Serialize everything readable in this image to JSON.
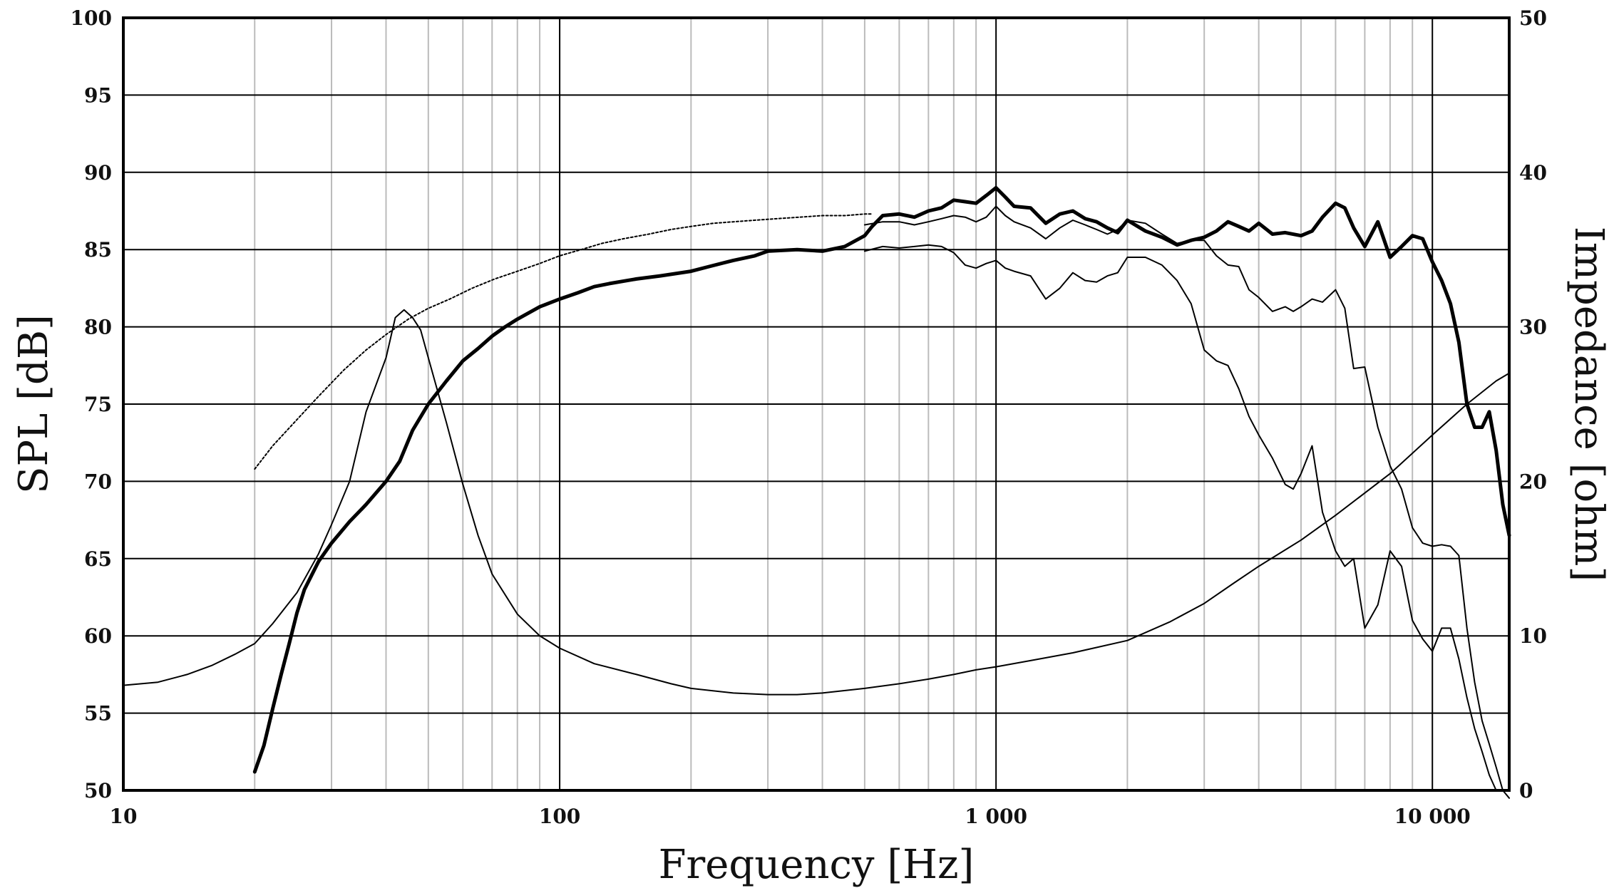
{
  "chart_data": {
    "type": "line",
    "title": "",
    "xlabel": "Frequency [Hz]",
    "ylabel": "SPL [dB]",
    "y2label": "Impedance [ohm]",
    "xscale": "log",
    "xlim": [
      10,
      15000
    ],
    "ylim": [
      50,
      100
    ],
    "y2lim": [
      0,
      50
    ],
    "grid": true,
    "legend": "none",
    "x_ticks": [
      {
        "value": 10,
        "label": "10"
      },
      {
        "value": 100,
        "label": "100"
      },
      {
        "value": 1000,
        "label": "1 000"
      },
      {
        "value": 10000,
        "label": "10 000"
      }
    ],
    "y_ticks": [
      {
        "value": 50,
        "label": "50"
      },
      {
        "value": 55,
        "label": "55"
      },
      {
        "value": 60,
        "label": "60"
      },
      {
        "value": 65,
        "label": "65"
      },
      {
        "value": 70,
        "label": "70"
      },
      {
        "value": 75,
        "label": "75"
      },
      {
        "value": 80,
        "label": "80"
      },
      {
        "value": 85,
        "label": "85"
      },
      {
        "value": 90,
        "label": "90"
      },
      {
        "value": 95,
        "label": "95"
      },
      {
        "value": 100,
        "label": "100"
      }
    ],
    "y2_ticks": [
      {
        "value": 0,
        "label": "0"
      },
      {
        "value": 10,
        "label": "10"
      },
      {
        "value": 20,
        "label": "20"
      },
      {
        "value": 30,
        "label": "30"
      },
      {
        "value": 40,
        "label": "40"
      },
      {
        "value": 50,
        "label": "50"
      }
    ],
    "series": [
      {
        "style": "thick",
        "axis": "left",
        "x": [
          20,
          21,
          22,
          23,
          24,
          25,
          26,
          28,
          30,
          33,
          36,
          40,
          43,
          46,
          50,
          55,
          60,
          65,
          70,
          75,
          80,
          90,
          100,
          110,
          120,
          130,
          150,
          170,
          200,
          220,
          250,
          280,
          300,
          350,
          400,
          450,
          500,
          520,
          550,
          600,
          650,
          700,
          750,
          800,
          850,
          900,
          950,
          1000,
          1050,
          1100,
          1200,
          1300,
          1400,
          1500,
          1600,
          1700,
          1800,
          1900,
          2000,
          2200,
          2400,
          2600,
          2800,
          3000,
          3200,
          3400,
          3600,
          3800,
          4000,
          4300,
          4600,
          5000,
          5300,
          5600,
          6000,
          6300,
          6600,
          7000,
          7500,
          8000,
          8500,
          9000,
          9500,
          10000,
          10500,
          11000,
          11500,
          12000,
          12500,
          13000,
          13500,
          14000,
          14500,
          15000
        ],
        "y": [
          51.2,
          52.9,
          55.3,
          57.5,
          59.5,
          61.5,
          63.0,
          64.8,
          66.0,
          67.4,
          68.5,
          70.0,
          71.3,
          73.3,
          75.0,
          76.5,
          77.8,
          78.6,
          79.4,
          80.0,
          80.5,
          81.3,
          81.8,
          82.2,
          82.6,
          82.8,
          83.1,
          83.3,
          83.6,
          83.9,
          84.3,
          84.6,
          84.9,
          85.0,
          84.9,
          85.2,
          85.9,
          86.5,
          87.2,
          87.3,
          87.1,
          87.5,
          87.7,
          88.2,
          88.1,
          88.0,
          88.5,
          89.0,
          88.4,
          87.8,
          87.7,
          86.7,
          87.3,
          87.5,
          87.0,
          86.8,
          86.4,
          86.1,
          86.9,
          86.2,
          85.8,
          85.3,
          85.6,
          85.8,
          86.2,
          86.8,
          86.5,
          86.2,
          86.7,
          86.0,
          86.1,
          85.9,
          86.2,
          87.1,
          88.0,
          87.7,
          86.4,
          85.2,
          86.8,
          84.5,
          85.2,
          85.9,
          85.7,
          84.2,
          83.0,
          81.5,
          79.0,
          75.0,
          73.5,
          73.5,
          74.5,
          72.0,
          68.5,
          66.5
        ]
      },
      {
        "style": "thin",
        "axis": "left",
        "x": [
          500,
          550,
          600,
          650,
          700,
          750,
          800,
          850,
          900,
          950,
          1000,
          1050,
          1100,
          1200,
          1300,
          1400,
          1500,
          1600,
          1700,
          1800,
          1900,
          2000,
          2200,
          2400,
          2600,
          2800,
          3000,
          3200,
          3400,
          3600,
          3800,
          4000,
          4300,
          4600,
          4800,
          5000,
          5300,
          5600,
          6000,
          6300,
          6600,
          7000,
          7500,
          8000,
          8500,
          9000,
          9500,
          10000,
          10500,
          11000,
          11500,
          12000,
          12500,
          13000,
          13500,
          14000,
          14500,
          15000
        ],
        "y": [
          86.6,
          86.8,
          86.8,
          86.6,
          86.8,
          87.0,
          87.2,
          87.1,
          86.8,
          87.1,
          87.8,
          87.2,
          86.8,
          86.4,
          85.7,
          86.4,
          86.9,
          86.6,
          86.3,
          86.0,
          86.3,
          86.9,
          86.7,
          86.0,
          85.4,
          85.6,
          85.6,
          84.6,
          84.0,
          83.9,
          82.4,
          81.9,
          81.0,
          81.3,
          81.0,
          81.3,
          81.8,
          81.6,
          82.4,
          81.2,
          77.3,
          77.4,
          73.5,
          71.0,
          69.5,
          67.0,
          66.0,
          65.8,
          65.9,
          65.8,
          65.2,
          60.5,
          57.0,
          54.5,
          53.0,
          51.5,
          50.0,
          49.5
        ]
      },
      {
        "style": "thin",
        "axis": "left",
        "x": [
          500,
          550,
          600,
          650,
          700,
          750,
          800,
          850,
          900,
          950,
          1000,
          1050,
          1100,
          1200,
          1300,
          1400,
          1500,
          1600,
          1700,
          1800,
          1900,
          2000,
          2200,
          2400,
          2600,
          2800,
          3000,
          3200,
          3400,
          3600,
          3800,
          4000,
          4300,
          4600,
          4800,
          5000,
          5300,
          5600,
          6000,
          6300,
          6600,
          7000,
          7500,
          8000,
          8500,
          9000,
          9500,
          10000,
          10500,
          11000,
          11500,
          12000,
          12500,
          13000,
          13500,
          14000,
          14500,
          15000
        ],
        "y": [
          84.9,
          85.2,
          85.1,
          85.2,
          85.3,
          85.2,
          84.8,
          84.0,
          83.8,
          84.1,
          84.3,
          83.8,
          83.6,
          83.3,
          81.8,
          82.5,
          83.5,
          83.0,
          82.9,
          83.3,
          83.5,
          84.5,
          84.5,
          84.0,
          83.0,
          81.5,
          78.5,
          77.8,
          77.5,
          76.0,
          74.2,
          73.0,
          71.5,
          69.8,
          69.5,
          70.5,
          72.3,
          68.0,
          65.5,
          64.5,
          65.0,
          60.5,
          62.0,
          65.5,
          64.5,
          61.0,
          59.8,
          59.0,
          60.5,
          60.5,
          58.5,
          56.0,
          54.0,
          52.5,
          51.0,
          50.0,
          50.0,
          50.0
        ]
      },
      {
        "style": "dotted",
        "axis": "right",
        "x": [
          20,
          22,
          25,
          28,
          32,
          36,
          40,
          45,
          50,
          56,
          63,
          71,
          80,
          90,
          100,
          112,
          125,
          140,
          160,
          180,
          200,
          225,
          250,
          280,
          315,
          355,
          400,
          450,
          500,
          520
        ],
        "y": [
          20.8,
          22.3,
          24.0,
          25.5,
          27.2,
          28.5,
          29.5,
          30.5,
          31.2,
          31.8,
          32.5,
          33.1,
          33.6,
          34.1,
          34.6,
          35.0,
          35.4,
          35.7,
          36.0,
          36.3,
          36.5,
          36.7,
          36.8,
          36.9,
          37.0,
          37.1,
          37.2,
          37.2,
          37.3,
          37.3
        ]
      },
      {
        "style": "thin",
        "axis": "right",
        "x": [
          10,
          12,
          14,
          16,
          18,
          20,
          22,
          25,
          28,
          30,
          33,
          36,
          40,
          42,
          44,
          46,
          48,
          50,
          55,
          60,
          65,
          70,
          80,
          90,
          100,
          120,
          150,
          180,
          200,
          250,
          300,
          350,
          400,
          500,
          600,
          700,
          800,
          900,
          1000,
          1200,
          1500,
          2000,
          2500,
          3000,
          3500,
          4000,
          5000,
          6000,
          8000,
          10000,
          12000,
          14000,
          15000
        ],
        "y": [
          6.8,
          7.0,
          7.5,
          8.1,
          8.8,
          9.5,
          10.8,
          12.8,
          15.3,
          17.2,
          20.0,
          24.5,
          28.0,
          30.6,
          31.1,
          30.6,
          29.8,
          28.0,
          23.8,
          19.8,
          16.5,
          14.0,
          11.4,
          10.0,
          9.2,
          8.2,
          7.5,
          6.9,
          6.6,
          6.3,
          6.2,
          6.2,
          6.3,
          6.6,
          6.9,
          7.2,
          7.5,
          7.8,
          8.0,
          8.4,
          8.9,
          9.7,
          10.9,
          12.1,
          13.4,
          14.5,
          16.2,
          17.8,
          20.5,
          23.0,
          25.0,
          26.5,
          27.0
        ]
      }
    ]
  }
}
